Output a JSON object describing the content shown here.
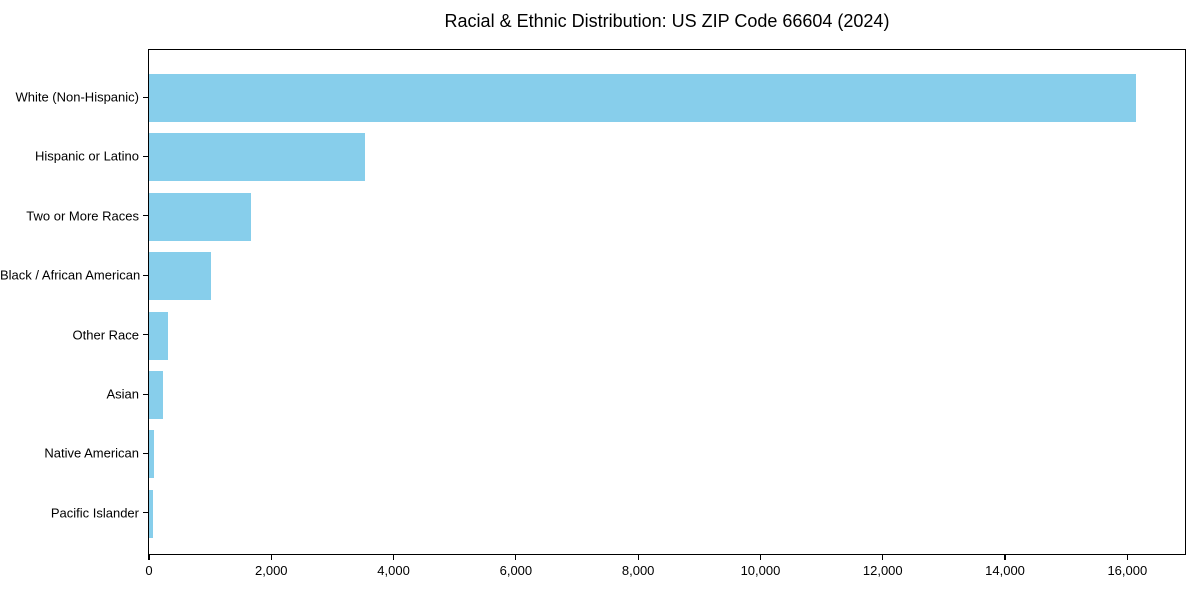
{
  "chart_data": {
    "type": "bar",
    "orientation": "horizontal",
    "title": "Racial & Ethnic Distribution: US ZIP Code 66604 (2024)",
    "categories": [
      "White (Non-Hispanic)",
      "Hispanic or Latino",
      "Two or More Races",
      "Black / African American",
      "Other Race",
      "Asian",
      "Native American",
      "Pacific Islander"
    ],
    "values": [
      16135,
      3525,
      1675,
      1020,
      305,
      225,
      85,
      70
    ],
    "xlabel": "",
    "ylabel": "",
    "xlim": [
      0,
      16943
    ],
    "x_ticks": [
      0,
      2000,
      4000,
      6000,
      8000,
      10000,
      12000,
      14000,
      16000
    ],
    "x_tick_labels": [
      "0",
      "2,000",
      "4,000",
      "6,000",
      "8,000",
      "10,000",
      "12,000",
      "14,000",
      "16,000"
    ],
    "bar_color": "#87CEEB",
    "axis_color": "#000000",
    "background_color": "#ffffff",
    "grid": false,
    "legend": null
  }
}
